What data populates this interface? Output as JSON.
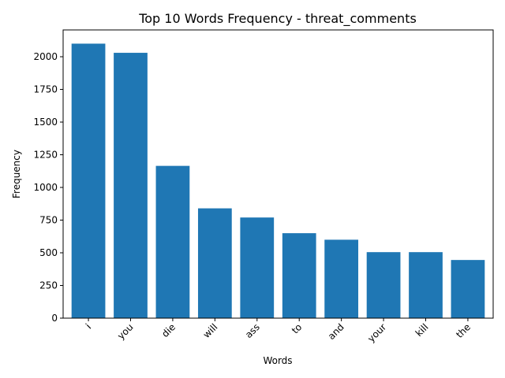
{
  "chart_data": {
    "type": "bar",
    "title": "Top 10 Words Frequency - threat_comments",
    "xlabel": "Words",
    "ylabel": "Frequency",
    "categories": [
      "i",
      "you",
      "die",
      "will",
      "ass",
      "to",
      "and",
      "your",
      "kill",
      "the"
    ],
    "values": [
      2100,
      2030,
      1165,
      840,
      770,
      650,
      600,
      505,
      505,
      445
    ],
    "ylim": [
      0,
      2205
    ],
    "yticks": [
      0,
      250,
      500,
      750,
      1000,
      1250,
      1500,
      1750,
      2000
    ],
    "bar_color": "#1f77b4",
    "grid": false,
    "legend": "none"
  }
}
